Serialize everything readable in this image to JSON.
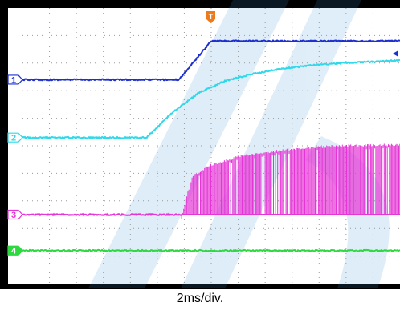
{
  "caption": "2ms/div.",
  "trigger_marker": {
    "letter": "T",
    "color": "#ee7a1a"
  },
  "chart_data": {
    "type": "line",
    "title": "",
    "xlabel": "2ms/div.",
    "ylabel": "",
    "x_unit": "div",
    "y_unit": "div",
    "xlim": [
      0,
      14
    ],
    "ylim": [
      0,
      10
    ],
    "grid": true,
    "grid_divisions": {
      "x": 14,
      "y": 10
    },
    "legend": "none",
    "series": [
      {
        "marker": "1",
        "color": "#1d2fd0",
        "shape": "step",
        "offset": 7.4,
        "x": [
          0,
          5.8,
          7.0,
          14
        ],
        "y": [
          7.4,
          7.4,
          8.8,
          8.8
        ]
      },
      {
        "marker": "2",
        "color": "#2fd8ea",
        "shape": "rc_rise",
        "offset": 5.3,
        "x": [
          0,
          4.6,
          5.5,
          6.5,
          7.5,
          8.5,
          9.5,
          10.5,
          11.5,
          12.5,
          14
        ],
        "y": [
          5.3,
          5.3,
          6.15,
          6.9,
          7.35,
          7.6,
          7.78,
          7.9,
          7.98,
          8.03,
          8.1
        ]
      },
      {
        "marker": "3",
        "color": "#e535d6",
        "shape": "switching_envelope",
        "offset": 2.5,
        "x": [
          0,
          5.9,
          6.3,
          7.0,
          8.0,
          9.0,
          10.0,
          11.0,
          12.0,
          13.0,
          14
        ],
        "y": [
          2.5,
          2.5,
          3.95,
          4.35,
          4.65,
          4.8,
          4.92,
          5.0,
          5.05,
          5.07,
          5.08
        ]
      },
      {
        "marker": "4",
        "color": "#2ed840",
        "shape": "flat",
        "offset": 1.2,
        "x": [
          0,
          14
        ],
        "y": [
          1.2,
          1.2
        ]
      }
    ]
  }
}
